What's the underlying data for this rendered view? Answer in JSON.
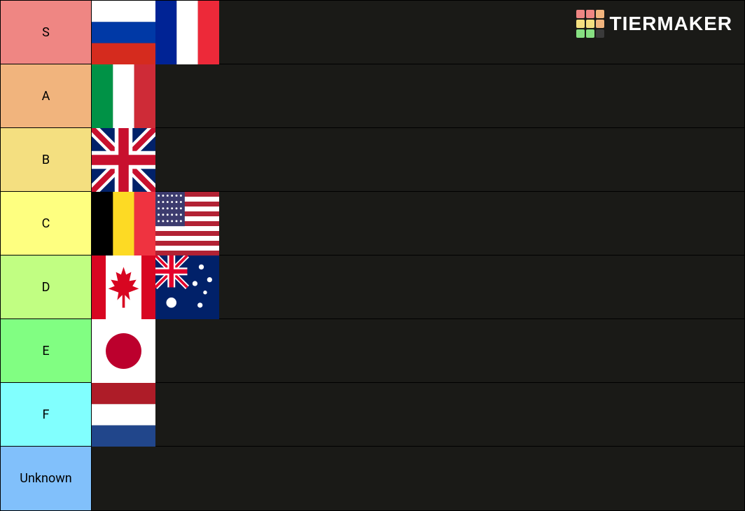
{
  "watermark": {
    "text": "TIERMAKER",
    "grid_colors": [
      "#ef8683",
      "#ef8683",
      "#f1b47d",
      "#f4df80",
      "#f4df80",
      "#f1b47d",
      "#87e082",
      "#87e082",
      "#3a3a3a"
    ]
  },
  "row_bg": "#1a1a17",
  "tiers": [
    {
      "label": "S",
      "color": "#ef8683",
      "items": [
        "russia",
        "france"
      ]
    },
    {
      "label": "A",
      "color": "#f1b47d",
      "items": [
        "italy"
      ]
    },
    {
      "label": "B",
      "color": "#f4df80",
      "items": [
        "uk"
      ]
    },
    {
      "label": "C",
      "color": "#feff80",
      "items": [
        "belgium",
        "usa"
      ]
    },
    {
      "label": "D",
      "color": "#c1fe82",
      "items": [
        "canada",
        "australia"
      ]
    },
    {
      "label": "E",
      "color": "#81fe82",
      "items": [
        "japan"
      ]
    },
    {
      "label": "F",
      "color": "#81fffe",
      "items": [
        "netherlands"
      ]
    },
    {
      "label": "Unknown",
      "color": "#81c0fb",
      "items": []
    }
  ],
  "flag_colors": {
    "russia": [
      "#ffffff",
      "#0039a6",
      "#d52b1e"
    ],
    "france": [
      "#002395",
      "#ffffff",
      "#ed2939"
    ],
    "italy": [
      "#009246",
      "#ffffff",
      "#ce2b37"
    ],
    "uk": {
      "bg": "#012169",
      "white": "#ffffff",
      "red": "#c8102e"
    },
    "belgium": [
      "#000000",
      "#fdda24",
      "#ef3340"
    ],
    "usa": {
      "red": "#b22234",
      "white": "#ffffff",
      "blue": "#3c3b6e"
    },
    "canada": {
      "red": "#d80621",
      "white": "#ffffff"
    },
    "australia": {
      "bg": "#012169",
      "white": "#ffffff",
      "red": "#e4002b"
    },
    "japan": {
      "white": "#ffffff",
      "red": "#bc002d"
    },
    "netherlands": [
      "#ae1c28",
      "#ffffff",
      "#21468b"
    ]
  }
}
